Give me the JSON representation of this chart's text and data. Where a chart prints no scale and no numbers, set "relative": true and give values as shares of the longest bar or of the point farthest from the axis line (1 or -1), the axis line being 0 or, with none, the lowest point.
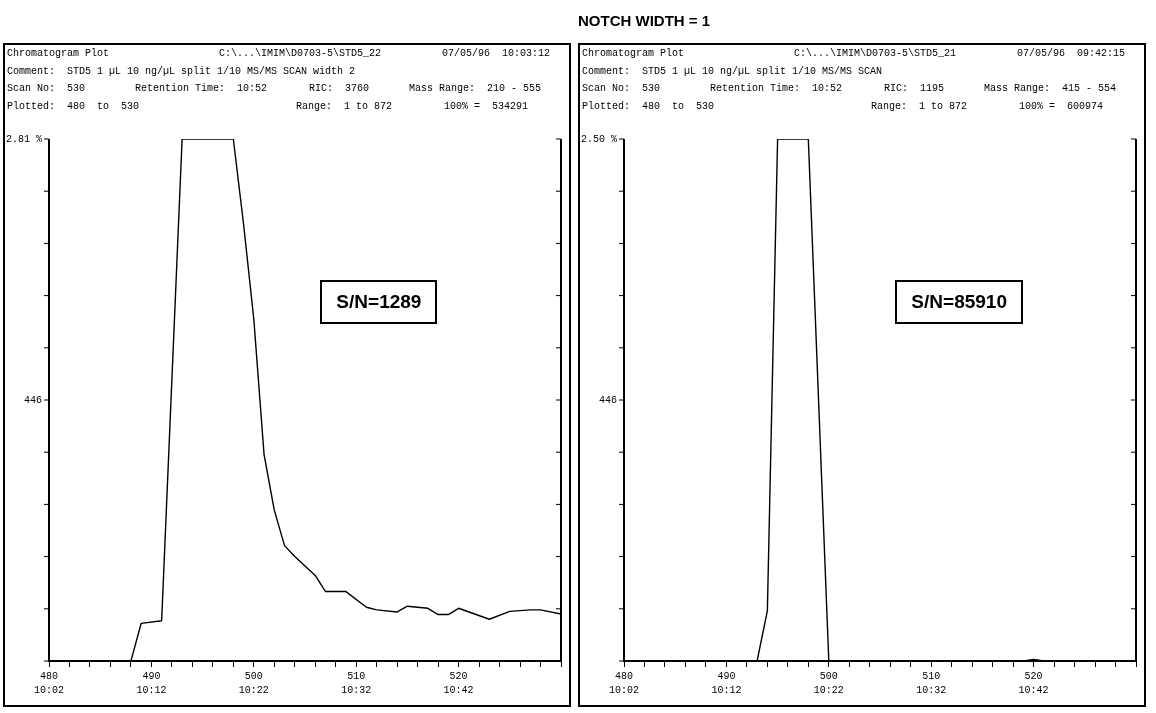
{
  "chart_data": [
    {
      "type": "line",
      "marker": "none",
      "relative": true,
      "annotations": [
        "Chromatogram Plot",
        "C:\\...\\IMIM\\D0703-5\\STD5_22",
        "07/05/96  10:03:12",
        "Comment:  STD5 1 µL 10 ng/µL split 1/10 MS/MS SCAN width 2",
        "Scan No:  530",
        "Retention Time:  10:52",
        "RIC:  3760",
        "Mass Range:  210 - 555",
        "Plotted:  480  to  530",
        "Range:  1 to 872",
        "100% =  534291",
        "S/N=1289",
        "10:02",
        "10:12",
        "10:22",
        "10:32",
        "10:42",
        "2.81 %",
        "446"
      ],
      "x": [
        480,
        488,
        489,
        491,
        493,
        498,
        499,
        500,
        501,
        502,
        503,
        504,
        506,
        507,
        509,
        511,
        512,
        514,
        515,
        517,
        518,
        519,
        520,
        523,
        525,
        527,
        528,
        530
      ],
      "series": [
        {
          "color": "#000000",
          "values": [
            0,
            0,
            0.072,
            0.077,
            1,
            1,
            0.837,
            0.655,
            0.396,
            0.289,
            0.221,
            0.2,
            0.164,
            0.133,
            0.133,
            0.103,
            0.098,
            0.094,
            0.105,
            0.101,
            0.089,
            0.089,
            0.101,
            0.08,
            0.095,
            0.098,
            0.098,
            0.09
          ]
        }
      ],
      "xlim": [
        480,
        530
      ],
      "xticks": [
        480,
        {
          "value": 482,
          "label": null
        },
        {
          "value": 484,
          "label": null
        },
        {
          "value": 486,
          "label": null
        },
        {
          "value": 488,
          "label": null
        },
        490,
        {
          "value": 492,
          "label": null
        },
        {
          "value": 494,
          "label": null
        },
        {
          "value": 496,
          "label": null
        },
        {
          "value": 498,
          "label": null
        },
        500,
        {
          "value": 502,
          "label": null
        },
        {
          "value": 504,
          "label": null
        },
        {
          "value": 506,
          "label": null
        },
        {
          "value": 508,
          "label": null
        },
        510,
        {
          "value": 512,
          "label": null
        },
        {
          "value": 514,
          "label": null
        },
        {
          "value": 516,
          "label": null
        },
        {
          "value": 518,
          "label": null
        },
        520,
        {
          "value": 522,
          "label": null
        },
        {
          "value": 524,
          "label": null
        },
        {
          "value": 526,
          "label": null
        },
        {
          "value": 528,
          "label": null
        },
        {
          "value": 530,
          "label": null
        }
      ]
    },
    {
      "type": "line",
      "marker": "none",
      "relative": true,
      "title": "NOTCH WIDTH = 1",
      "annotations": [
        "Chromatogram Plot",
        "C:\\...\\IMIM\\D0703-5\\STD5_21",
        "07/05/96  09:42:15",
        "Comment:  STD5 1 µL 10 ng/µL split 1/10 MS/MS SCAN",
        "Scan No:  530",
        "Retention Time:  10:52",
        "RIC:  1195",
        "Mass Range:  415 - 554",
        "Plotted:  480  to  530",
        "Range:  1 to 872",
        "100% =  600974",
        "S/N=85910",
        "10:02",
        "10:12",
        "10:22",
        "10:32",
        "10:42",
        "2.50 %",
        "446"
      ],
      "x": [
        480,
        493,
        494,
        495,
        498,
        500,
        519,
        520,
        521,
        530
      ],
      "series": [
        {
          "color": "#000000",
          "values": [
            0,
            0,
            0.096,
            1,
            1,
            0,
            0,
            0.003,
            0,
            0
          ]
        }
      ],
      "xlim": [
        480,
        530
      ],
      "xticks": [
        480,
        {
          "value": 482,
          "label": null
        },
        {
          "value": 484,
          "label": null
        },
        {
          "value": 486,
          "label": null
        },
        {
          "value": 488,
          "label": null
        },
        490,
        {
          "value": 492,
          "label": null
        },
        {
          "value": 494,
          "label": null
        },
        {
          "value": 496,
          "label": null
        },
        {
          "value": 498,
          "label": null
        },
        500,
        {
          "value": 502,
          "label": null
        },
        {
          "value": 504,
          "label": null
        },
        {
          "value": 506,
          "label": null
        },
        {
          "value": 508,
          "label": null
        },
        510,
        {
          "value": 512,
          "label": null
        },
        {
          "value": 514,
          "label": null
        },
        {
          "value": 516,
          "label": null
        },
        {
          "value": 518,
          "label": null
        },
        520,
        {
          "value": 522,
          "label": null
        },
        {
          "value": 524,
          "label": null
        },
        {
          "value": 526,
          "label": null
        },
        {
          "value": 528,
          "label": null
        },
        {
          "value": 530,
          "label": null
        }
      ]
    }
  ]
}
